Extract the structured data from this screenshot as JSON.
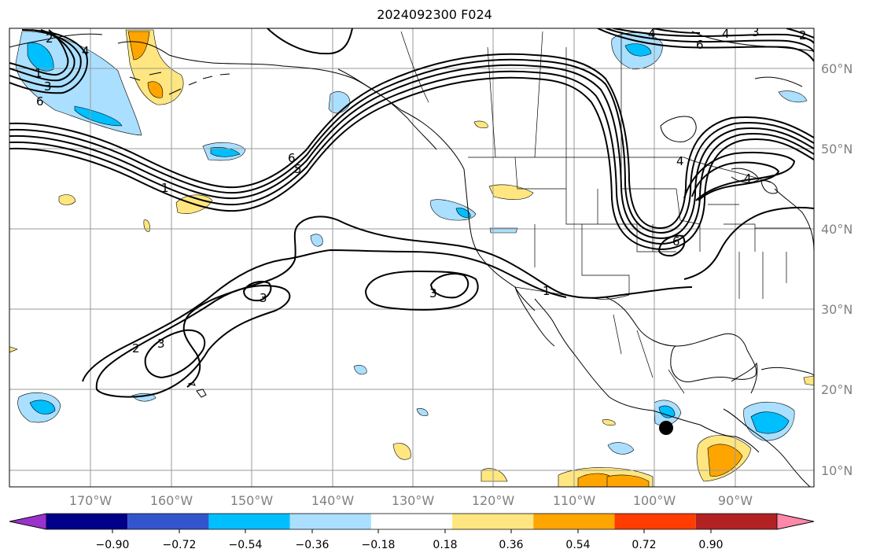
{
  "title": "2024092300 F024",
  "latitude_labels": [
    "60°N",
    "50°N",
    "40°N",
    "30°N",
    "20°N",
    "10°N"
  ],
  "longitude_labels": [
    "170°W",
    "160°W",
    "150°W",
    "140°W",
    "130°W",
    "120°W",
    "110°W",
    "100°W",
    "90°W"
  ],
  "colorbar": {
    "ticks": [
      "−0.90",
      "−0.72",
      "−0.54",
      "−0.36",
      "−0.18",
      "0.18",
      "0.36",
      "0.54",
      "0.72",
      "0.90"
    ],
    "colors": [
      "#9933cc",
      "#000088",
      "#3355cc",
      "#00bfff",
      "#aadfff",
      "#ffffff",
      "#ffe680",
      "#ffa500",
      "#ff3d00",
      "#b22222",
      "#ff88aa"
    ]
  },
  "contour_labels": [
    "2",
    "1",
    "3",
    "6",
    "6",
    "5",
    "6",
    "4",
    "1",
    "2",
    "3",
    "3",
    "1",
    "2",
    "3",
    "4",
    "6",
    "4",
    "3",
    "4",
    "4"
  ],
  "marker": "storm-center-dot"
}
